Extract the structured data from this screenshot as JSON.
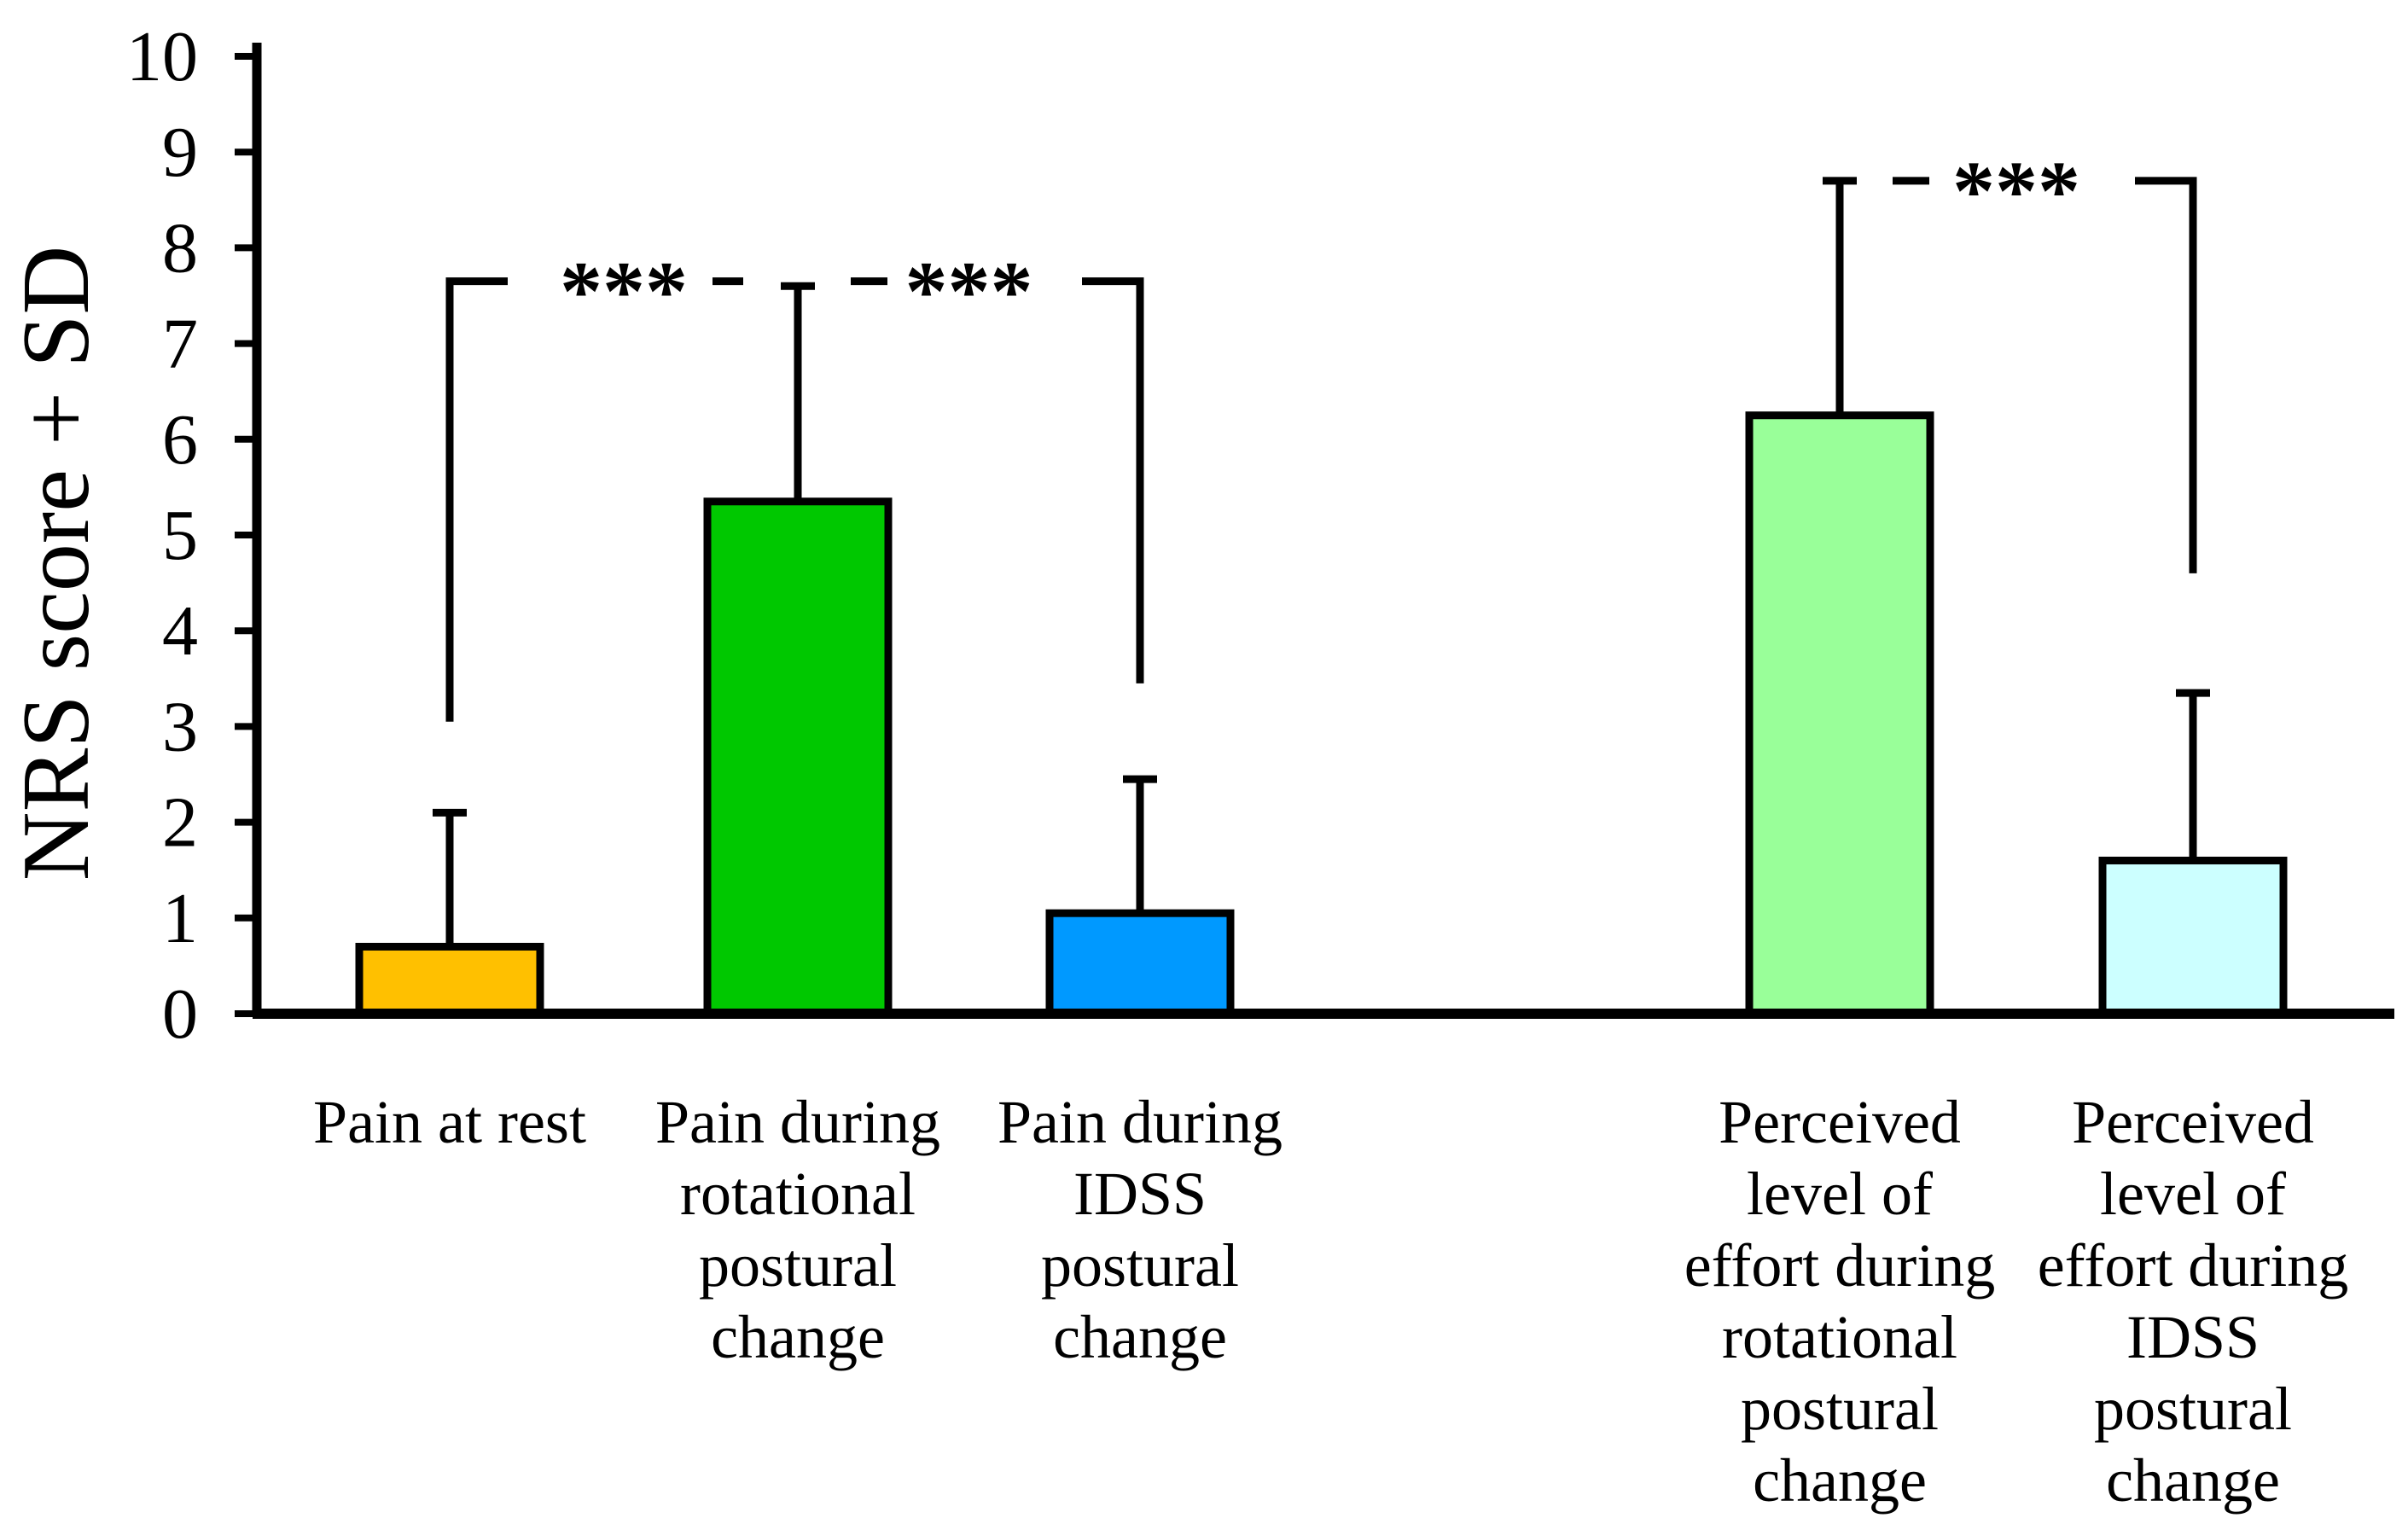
{
  "chart_data": {
    "type": "bar",
    "title": "",
    "xlabel": "",
    "ylabel": "NRS score + SD",
    "ylim": [
      0,
      10
    ],
    "yticks": [
      0,
      1,
      2,
      3,
      4,
      5,
      6,
      7,
      8,
      9,
      10
    ],
    "grid": false,
    "legend": null,
    "categories": [
      "Pain at rest",
      "Pain during rotational postural change",
      "Pain during IDSS postural change",
      "Perceived level of effort during rotational postural change",
      "Perceived level of effort during IDSS postural change"
    ],
    "category_lines": [
      [
        "Pain at rest"
      ],
      [
        "Pain during",
        "rotational",
        "postural",
        "change"
      ],
      [
        "Pain during",
        "IDSS",
        "postural",
        "change"
      ],
      [
        "Perceived",
        "level of",
        "effort during",
        "rotational",
        "postural",
        "change"
      ],
      [
        "Perceived",
        "level of",
        "effort during",
        "IDSS",
        "postural",
        "change"
      ]
    ],
    "values": [
      0.7,
      5.35,
      1.05,
      6.25,
      1.6
    ],
    "sd": [
      1.4,
      2.25,
      1.4,
      2.45,
      1.75
    ],
    "bar_colors": [
      "#FFC000",
      "#00C800",
      "#0099FF",
      "#99FF99",
      "#CCFFFF"
    ],
    "bar_border_color": "#000000",
    "error_bar_color": "#000000",
    "axis_color": "#000000",
    "significance_brackets": [
      {
        "label": "***",
        "level": 7.65,
        "left_bar": 0,
        "right_bar": 1,
        "left_drop_to": 3.05,
        "right_drop_to": null
      },
      {
        "label": "***",
        "level": 7.65,
        "left_bar": 1,
        "right_bar": 2,
        "left_drop_to": null,
        "right_drop_to": 3.45
      },
      {
        "label": "***",
        "level": 8.7,
        "left_bar": 3,
        "right_bar": 4,
        "left_drop_to": null,
        "right_drop_to": 4.6
      }
    ]
  }
}
